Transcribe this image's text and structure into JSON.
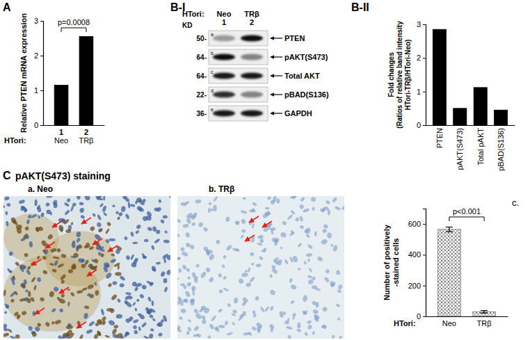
{
  "chart_data": [
    {
      "panel_label": "A",
      "type": "bar",
      "categories": [
        "Neo",
        "TRβ"
      ],
      "lane_labels": [
        "1",
        "2"
      ],
      "x_label": "HTori:",
      "values": [
        1.15,
        2.55
      ],
      "color": "#000000",
      "ylim": [
        0,
        3
      ],
      "yticks": [
        0,
        1,
        2,
        3
      ],
      "y_label": "Relative PTEN mRNA expression",
      "annotations": [
        {
          "text": "p=0.0008",
          "from": 0,
          "to": 1
        }
      ]
    },
    {
      "panel_label": "B-II",
      "type": "bar",
      "categories": [
        "PTEN",
        "pAKT(S473)",
        "Total pAKT",
        "pBAD(S136)"
      ],
      "values": [
        2.85,
        0.5,
        1.12,
        0.45
      ],
      "color": "#000000",
      "ylim": [
        0,
        3
      ],
      "yticks": [
        0,
        1,
        2,
        3
      ],
      "y_label": [
        "Fold changes",
        "(Ratios of relative band intensity",
        "HTori-TRβ/HTori-Neo)"
      ]
    },
    {
      "panel_label": "c.",
      "type": "bar",
      "categories": [
        "Neo",
        "TRβ"
      ],
      "x_label": "HTori:",
      "values": [
        565,
        30
      ],
      "errors": [
        15,
        8
      ],
      "color": "#7a7a7a",
      "ylim": [
        0,
        700
      ],
      "yticks": [
        0,
        200,
        400,
        600
      ],
      "y_label": [
        "Number of positively",
        "-stained cells"
      ],
      "annotations": [
        {
          "text": "p<0.001",
          "from": 0,
          "to": 1
        }
      ]
    }
  ],
  "blot": {
    "panel_label": "B-I",
    "header_label": "HTori:",
    "kd_label": "KD",
    "lanes": [
      {
        "number": "1",
        "name": "Neo"
      },
      {
        "number": "2",
        "name": "TRβ"
      }
    ],
    "rows": [
      {
        "letter": "a",
        "kd": "50-",
        "protein": "PTEN",
        "band_intensity": [
          0.35,
          0.95
        ]
      },
      {
        "letter": "b",
        "kd": "64-",
        "protein": "pAKT(S473)",
        "band_intensity": [
          0.95,
          0.45
        ]
      },
      {
        "letter": "c",
        "kd": "64-",
        "protein": "Total AKT",
        "band_intensity": [
          0.9,
          0.9
        ]
      },
      {
        "letter": "d",
        "kd": "22-",
        "protein": "pBAD(S136)",
        "band_intensity": [
          0.8,
          0.45
        ]
      },
      {
        "letter": "e",
        "kd": "36-",
        "protein": "GAPDH",
        "band_intensity": [
          0.9,
          0.9
        ]
      }
    ]
  },
  "staining": {
    "panel_label": "C",
    "title": "pAKT(S473) staining",
    "images": [
      {
        "label": "a. Neo"
      },
      {
        "label": "b. TRβ"
      }
    ]
  }
}
